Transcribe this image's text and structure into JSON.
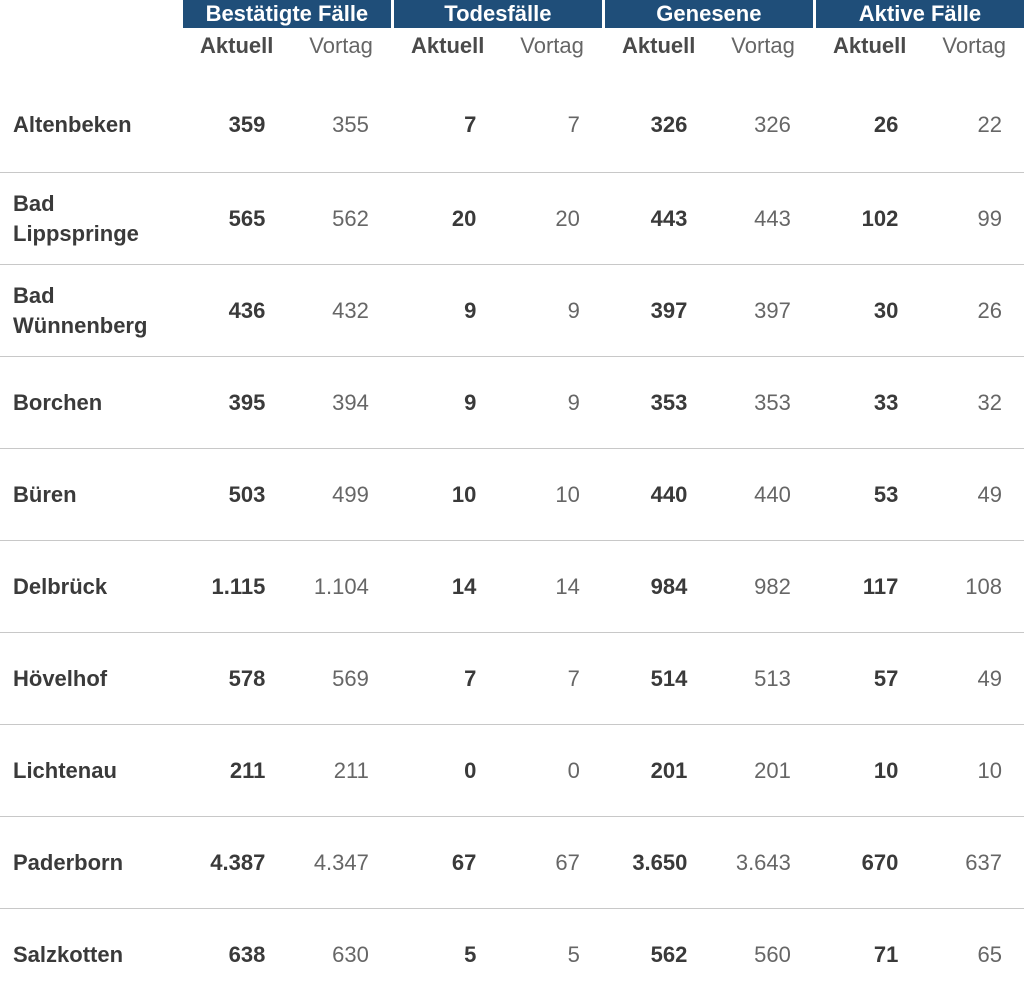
{
  "chart_data": {
    "type": "table",
    "groups": [
      "Bestätigte Fälle",
      "Todesfälle",
      "Genesene",
      "Aktive Fälle"
    ],
    "subheaders": [
      "Aktuell",
      "Vortag"
    ],
    "rows": [
      {
        "name": "Altenbeken",
        "cells": [
          "359",
          "355",
          "7",
          "7",
          "326",
          "326",
          "26",
          "22"
        ]
      },
      {
        "name": "Bad Lippspringe",
        "cells": [
          "565",
          "562",
          "20",
          "20",
          "443",
          "443",
          "102",
          "99"
        ]
      },
      {
        "name": "Bad Wünnenberg",
        "cells": [
          "436",
          "432",
          "9",
          "9",
          "397",
          "397",
          "30",
          "26"
        ]
      },
      {
        "name": "Borchen",
        "cells": [
          "395",
          "394",
          "9",
          "9",
          "353",
          "353",
          "33",
          "32"
        ]
      },
      {
        "name": "Büren",
        "cells": [
          "503",
          "499",
          "10",
          "10",
          "440",
          "440",
          "53",
          "49"
        ]
      },
      {
        "name": "Delbrück",
        "cells": [
          "1.115",
          "1.104",
          "14",
          "14",
          "984",
          "982",
          "117",
          "108"
        ]
      },
      {
        "name": "Hövelhof",
        "cells": [
          "578",
          "569",
          "7",
          "7",
          "514",
          "513",
          "57",
          "49"
        ]
      },
      {
        "name": "Lichtenau",
        "cells": [
          "211",
          "211",
          "0",
          "0",
          "201",
          "201",
          "10",
          "10"
        ]
      },
      {
        "name": "Paderborn",
        "cells": [
          "4.387",
          "4.347",
          "67",
          "67",
          "3.650",
          "3.643",
          "670",
          "637"
        ]
      },
      {
        "name": "Salzkotten",
        "cells": [
          "638",
          "630",
          "5",
          "5",
          "562",
          "560",
          "71",
          "65"
        ]
      }
    ]
  },
  "colors": {
    "header_bg": "#1f4e79",
    "header_text": "#ffffff",
    "bold_text": "#3a3a3a",
    "muted_text": "#666666",
    "divider": "#c8c8c8"
  }
}
